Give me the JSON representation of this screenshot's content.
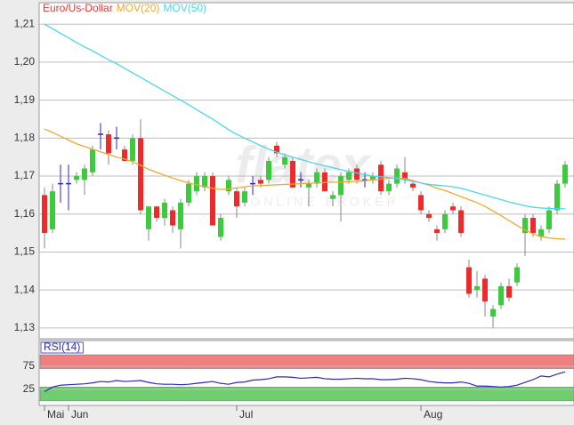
{
  "chart_data": [
    {
      "type": "candlestick",
      "watermark": {
        "logo": "flatex",
        "tagline": "ONLINE BROKER"
      },
      "categories": [
        "Mai",
        null,
        null,
        "Jun",
        null,
        null,
        null,
        null,
        null,
        null,
        null,
        null,
        null,
        null,
        null,
        null,
        null,
        null,
        null,
        null,
        null,
        null,
        null,
        null,
        "Jul",
        null,
        null,
        null,
        null,
        null,
        null,
        null,
        null,
        null,
        null,
        null,
        null,
        null,
        null,
        null,
        null,
        null,
        null,
        null,
        null,
        null,
        null,
        "Aug",
        null,
        null,
        null,
        null,
        null,
        null,
        null,
        null,
        null,
        null,
        null,
        null,
        null,
        null,
        null,
        null,
        null,
        null
      ],
      "ylim": [
        1.1274,
        1.2152
      ],
      "yticks": [
        {
          "value": 1.13,
          "label": "1,13"
        },
        {
          "value": 1.14,
          "label": "1,14"
        },
        {
          "value": 1.15,
          "label": "1,15"
        },
        {
          "value": 1.16,
          "label": "1,16"
        },
        {
          "value": 1.17,
          "label": "1,17"
        },
        {
          "value": 1.18,
          "label": "1,18"
        },
        {
          "value": 1.19,
          "label": "1,19"
        },
        {
          "value": 1.2,
          "label": "1,20"
        },
        {
          "value": 1.21,
          "label": "1,21"
        }
      ],
      "grid": true,
      "series": [
        {
          "name": "Euro/Us-Dollar",
          "type": "candlestick",
          "color": "#e8352c",
          "up_color": "#3ccb3c",
          "down_color": "#ee2a2a",
          "doji_color": "#2a2ab8",
          "open": [
            1.165,
            1.156,
            1.168,
            1.168,
            1.169,
            1.169,
            1.171,
            1.181,
            1.181,
            1.18,
            1.177,
            1.174,
            1.18,
            1.156,
            1.162,
            1.159,
            1.161,
            1.156,
            1.163,
            1.166,
            1.167,
            1.17,
            1.154,
            1.166,
            1.166,
            1.163,
            1.168,
            1.169,
            1.169,
            1.178,
            1.173,
            1.174,
            1.169,
            1.167,
            1.168,
            1.171,
            1.164,
            1.165,
            1.169,
            1.172,
            1.169,
            1.169,
            1.173,
            1.166,
            1.168,
            1.171,
            1.168,
            1.165,
            1.16,
            1.156,
            1.156,
            1.162,
            1.161,
            1.146,
            1.14,
            1.143,
            1.133,
            1.136,
            1.141,
            1.142,
            1.155,
            1.159,
            1.154,
            1.156,
            1.161,
            1.168
          ],
          "high": [
            1.167,
            1.168,
            1.173,
            1.173,
            1.171,
            1.173,
            1.178,
            1.184,
            1.182,
            1.183,
            1.178,
            1.181,
            1.185,
            1.162,
            1.162,
            1.164,
            1.162,
            1.164,
            1.169,
            1.171,
            1.171,
            1.171,
            1.16,
            1.17,
            1.167,
            1.167,
            1.17,
            1.17,
            1.175,
            1.179,
            1.176,
            1.175,
            1.171,
            1.169,
            1.172,
            1.172,
            1.166,
            1.171,
            1.172,
            1.173,
            1.171,
            1.171,
            1.174,
            1.169,
            1.173,
            1.175,
            1.169,
            1.166,
            1.161,
            1.157,
            1.161,
            1.163,
            1.162,
            1.148,
            1.145,
            1.144,
            1.136,
            1.142,
            1.143,
            1.147,
            1.16,
            1.16,
            1.157,
            1.162,
            1.169,
            1.174
          ],
          "low": [
            1.151,
            1.155,
            1.163,
            1.161,
            1.168,
            1.165,
            1.17,
            1.177,
            1.173,
            1.177,
            1.174,
            1.173,
            1.16,
            1.153,
            1.158,
            1.157,
            1.155,
            1.151,
            1.162,
            1.165,
            1.166,
            1.157,
            1.153,
            1.165,
            1.159,
            1.162,
            1.165,
            1.167,
            1.168,
            1.175,
            1.172,
            1.167,
            1.167,
            1.162,
            1.167,
            1.166,
            1.162,
            1.158,
            1.168,
            1.168,
            1.167,
            1.168,
            1.165,
            1.165,
            1.167,
            1.168,
            1.166,
            1.16,
            1.158,
            1.153,
            1.155,
            1.16,
            1.154,
            1.138,
            1.138,
            1.133,
            1.13,
            1.135,
            1.137,
            1.141,
            1.149,
            1.154,
            1.153,
            1.155,
            1.16,
            1.167
          ],
          "close": [
            1.155,
            1.166,
            1.168,
            1.168,
            1.17,
            1.172,
            1.177,
            1.181,
            1.176,
            1.18,
            1.174,
            1.18,
            1.161,
            1.162,
            1.159,
            1.163,
            1.157,
            1.163,
            1.168,
            1.17,
            1.17,
            1.157,
            1.159,
            1.169,
            1.162,
            1.166,
            1.168,
            1.168,
            1.174,
            1.176,
            1.175,
            1.167,
            1.169,
            1.168,
            1.171,
            1.166,
            1.165,
            1.17,
            1.171,
            1.169,
            1.169,
            1.17,
            1.166,
            1.168,
            1.172,
            1.169,
            1.167,
            1.161,
            1.159,
            1.155,
            1.16,
            1.161,
            1.155,
            1.139,
            1.141,
            1.137,
            1.135,
            1.141,
            1.138,
            1.146,
            1.159,
            1.155,
            1.156,
            1.161,
            1.168,
            1.173
          ]
        },
        {
          "name": "MOV(20)",
          "type": "line",
          "color": "#f0a830",
          "values": [
            1.1824,
            1.1815,
            1.1805,
            1.1795,
            1.1785,
            1.1778,
            1.1771,
            1.1764,
            1.1757,
            1.175,
            1.1745,
            1.1738,
            1.1728,
            1.1718,
            1.171,
            1.1702,
            1.1695,
            1.1688,
            1.1682,
            1.1677,
            1.1672,
            1.1668,
            1.1665,
            1.1666,
            1.1669,
            1.1672,
            1.1674,
            1.1675,
            1.1676,
            1.1677,
            1.1678,
            1.1679,
            1.168,
            1.1681,
            1.1682,
            1.1683,
            1.1684,
            1.1684,
            1.1685,
            1.1686,
            1.1688,
            1.169,
            1.1692,
            1.1694,
            1.1695,
            1.1694,
            1.1688,
            1.1682,
            1.1676,
            1.1668,
            1.1662,
            1.1654,
            1.1646,
            1.1638,
            1.163,
            1.162,
            1.1608,
            1.1596,
            1.1583,
            1.157,
            1.1558,
            1.1548,
            1.1541,
            1.1537,
            1.1535,
            1.1534
          ]
        },
        {
          "name": "MOV(50)",
          "type": "line",
          "color": "#4dd6ea",
          "values": [
            1.21,
            1.2088,
            1.2076,
            1.2064,
            1.2052,
            1.204,
            1.203,
            1.2018,
            1.2006,
            1.1996,
            1.1984,
            1.1972,
            1.196,
            1.1948,
            1.1936,
            1.1924,
            1.1912,
            1.19,
            1.1888,
            1.1875,
            1.1862,
            1.185,
            1.1836,
            1.1822,
            1.181,
            1.18,
            1.179,
            1.178,
            1.1771,
            1.1763,
            1.1756,
            1.175,
            1.1744,
            1.1738,
            1.1732,
            1.1727,
            1.1722,
            1.1717,
            1.1712,
            1.1708,
            1.1704,
            1.17,
            1.1698,
            1.1696,
            1.1694,
            1.169,
            1.1686,
            1.1682,
            1.1678,
            1.1676,
            1.1674,
            1.1672,
            1.1668,
            1.1662,
            1.1656,
            1.165,
            1.1644,
            1.1638,
            1.1632,
            1.1627,
            1.1622,
            1.1618,
            1.1616,
            1.1615,
            1.1614,
            1.1614
          ]
        }
      ]
    },
    {
      "type": "line",
      "ylim": [
        -8,
        127
      ],
      "yticks": [
        25,
        75
      ],
      "bands": [
        {
          "range": [
            70,
            100
          ],
          "color": "#f08080"
        },
        {
          "range": [
            0,
            30
          ],
          "color": "#6fcf6f"
        }
      ],
      "series": [
        {
          "name": "RSI(14)",
          "color": "#2a2ab8",
          "values": [
            20,
            30,
            34,
            35,
            36,
            37,
            39,
            42,
            41,
            44,
            42,
            43,
            44,
            40,
            37,
            36,
            36,
            35,
            36,
            38,
            40,
            42,
            38,
            36,
            40,
            41,
            45,
            46,
            48,
            52,
            52,
            51,
            49,
            50,
            51,
            48,
            47,
            47,
            48,
            49,
            48,
            48,
            46,
            46,
            47,
            49,
            48,
            46,
            42,
            40,
            39,
            39,
            41,
            38,
            32,
            32,
            31,
            30,
            31,
            34,
            40,
            46,
            54,
            52,
            58,
            63
          ]
        }
      ]
    }
  ]
}
